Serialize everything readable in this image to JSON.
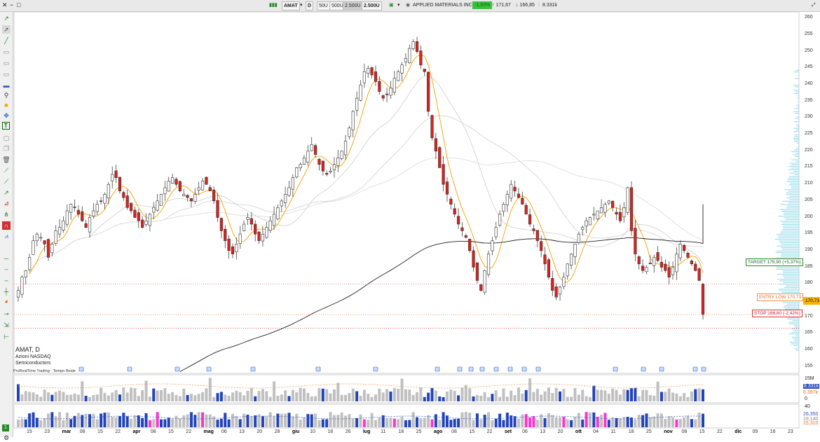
{
  "window": {
    "controls": [
      "✕",
      "−",
      "□"
    ]
  },
  "toolbar_top": {
    "symbol": "AMAT",
    "timeframe": "D",
    "units": [
      "50U",
      "500U",
      "2.500U"
    ],
    "units_selected": "2.500U",
    "units_display": "2.500U",
    "company": "APPLIED MATERIALS INC.",
    "change_badge": "-1,93%",
    "high": "↑ 171,67",
    "low": "↓ 166,85",
    "volume": "8.331k"
  },
  "instrument": {
    "ticker": "AMAT, D",
    "exchange": "Azioni NASDAQ",
    "sector": "Semiconductors",
    "source": "ProRealTime Trading - Tempo Reale"
  },
  "levels": {
    "target_label": "TARGET 179,90 (+5,37%)",
    "target": 179.9,
    "entry_label": "ENTRY LOW 170,73",
    "entry": 170.73,
    "stop_label": "STOP 166,60 (-2,42%)",
    "stop": 166.6,
    "last_price_label": "170,73"
  },
  "price_axis": {
    "ticks": [
      "260",
      "255",
      "250",
      "245",
      "240",
      "235",
      "230",
      "225",
      "220",
      "215",
      "210",
      "205",
      "200",
      "195",
      "190",
      "185",
      "180",
      "175",
      "170",
      "165",
      "160",
      "155"
    ],
    "min": 153,
    "max": 262
  },
  "volume_axis": {
    "ticks": [
      "15M",
      "0"
    ],
    "labels": [
      "8.331k",
      "6.397k"
    ]
  },
  "indicator_axis": {
    "ticks": [
      "40",
      "0"
    ],
    "labels": [
      "26,350",
      "19,140",
      "15,310"
    ]
  },
  "time_axis": [
    {
      "label": "15",
      "bold": false
    },
    {
      "label": "23",
      "bold": false
    },
    {
      "label": "mar",
      "bold": true
    },
    {
      "label": "08",
      "bold": false
    },
    {
      "label": "15",
      "bold": false
    },
    {
      "label": "22",
      "bold": false
    },
    {
      "label": "apr",
      "bold": true
    },
    {
      "label": "08",
      "bold": false
    },
    {
      "label": "15",
      "bold": false
    },
    {
      "label": "22",
      "bold": false
    },
    {
      "label": "mag",
      "bold": true
    },
    {
      "label": "06",
      "bold": false
    },
    {
      "label": "13",
      "bold": false
    },
    {
      "label": "20",
      "bold": false
    },
    {
      "label": "28",
      "bold": false
    },
    {
      "label": "giu",
      "bold": true
    },
    {
      "label": "10",
      "bold": false
    },
    {
      "label": "18",
      "bold": false
    },
    {
      "label": "26",
      "bold": false
    },
    {
      "label": "lug",
      "bold": true
    },
    {
      "label": "11",
      "bold": false
    },
    {
      "label": "18",
      "bold": false
    },
    {
      "label": "25",
      "bold": false
    },
    {
      "label": "ago",
      "bold": true
    },
    {
      "label": "08",
      "bold": false
    },
    {
      "label": "15",
      "bold": false
    },
    {
      "label": "22",
      "bold": false
    },
    {
      "label": "set",
      "bold": true
    },
    {
      "label": "06",
      "bold": false
    },
    {
      "label": "13",
      "bold": false
    },
    {
      "label": "20",
      "bold": false
    },
    {
      "label": "ott",
      "bold": true
    },
    {
      "label": "04",
      "bold": false
    },
    {
      "label": "11",
      "bold": false
    },
    {
      "label": "18",
      "bold": false
    },
    {
      "label": "25",
      "bold": false
    },
    {
      "label": "nov",
      "bold": true
    },
    {
      "label": "08",
      "bold": false
    },
    {
      "label": "15",
      "bold": false
    },
    {
      "label": "22",
      "bold": false
    },
    {
      "label": "dic",
      "bold": true
    },
    {
      "label": "09",
      "bold": false
    },
    {
      "label": "16",
      "bold": false
    },
    {
      "label": "23",
      "bold": false
    }
  ],
  "chart_data": {
    "type": "candlestick",
    "ylim": [
      153,
      262
    ],
    "closes": [
      178,
      182,
      184,
      188,
      193,
      195,
      194,
      192,
      188,
      192,
      196,
      197,
      199,
      202,
      204,
      203,
      201,
      199,
      197,
      200,
      202,
      204,
      205,
      207,
      210,
      213,
      212,
      208,
      206,
      203,
      202,
      200,
      199,
      197,
      199,
      201,
      203,
      205,
      207,
      209,
      211,
      212,
      210,
      208,
      207,
      206,
      205,
      207,
      209,
      211,
      210,
      208,
      205,
      200,
      196,
      193,
      190,
      189,
      192,
      195,
      198,
      200,
      198,
      195,
      193,
      195,
      197,
      199,
      201,
      203,
      205,
      207,
      209,
      212,
      215,
      216,
      218,
      220,
      222,
      219,
      216,
      214,
      213,
      214,
      216,
      218,
      220,
      223,
      227,
      232,
      236,
      240,
      244,
      245,
      243,
      241,
      238,
      236,
      237,
      239,
      242,
      244,
      246,
      248,
      251,
      253,
      250,
      246,
      244,
      232,
      224,
      220,
      215,
      210,
      207,
      204,
      201,
      198,
      196,
      194,
      190,
      185,
      181,
      178,
      184,
      189,
      193,
      197,
      201,
      204,
      207,
      210,
      208,
      206,
      204,
      201,
      198,
      196,
      193,
      190,
      186,
      182,
      178,
      176,
      179,
      182,
      186,
      189,
      192,
      195,
      197,
      199,
      200,
      201,
      202,
      203,
      204,
      205,
      203,
      201,
      199,
      203,
      209,
      196,
      189,
      186,
      184,
      185,
      186,
      188,
      187,
      185,
      184,
      182,
      185,
      189,
      192,
      190,
      188,
      186,
      184,
      181,
      170.7
    ],
    "series": [
      {
        "name": "EMA 200",
        "color": "#222222"
      },
      {
        "name": "MA 10",
        "color": "#f0a000"
      },
      {
        "name": "MA 20/50/100",
        "color": "#bbbbbb"
      }
    ]
  }
}
